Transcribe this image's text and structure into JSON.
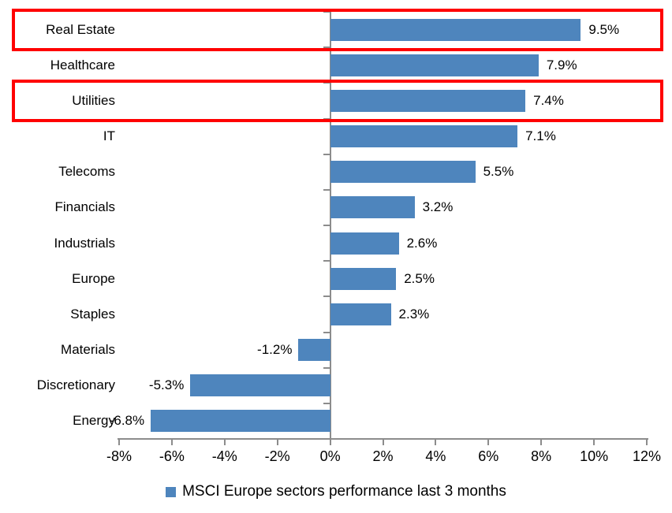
{
  "chart_data": {
    "type": "bar",
    "orientation": "horizontal",
    "title": "",
    "categories": [
      "Real Estate",
      "Healthcare",
      "Utilities",
      "IT",
      "Telecoms",
      "Financials",
      "Industrials",
      "Europe",
      "Staples",
      "Materials",
      "Discretionary",
      "Energy"
    ],
    "values": [
      9.5,
      7.9,
      7.4,
      7.1,
      5.5,
      3.2,
      2.6,
      2.5,
      2.3,
      -1.2,
      -5.3,
      -6.8
    ],
    "value_labels": [
      "9.5%",
      "7.9%",
      "7.4%",
      "7.1%",
      "5.5%",
      "3.2%",
      "2.6%",
      "2.5%",
      "2.3%",
      "-1.2%",
      "-5.3%",
      "-6.8%"
    ],
    "xlim": [
      -8,
      12
    ],
    "x_tick_step": 2,
    "x_tick_labels": [
      "-8%",
      "-6%",
      "-4%",
      "-2%",
      "0%",
      "2%",
      "4%",
      "6%",
      "8%",
      "10%",
      "12%"
    ],
    "grid": false,
    "legend": {
      "label": "MSCI Europe sectors performance last 3 months",
      "position": "bottom"
    },
    "highlighted_categories": [
      "Real Estate",
      "Utilities"
    ],
    "colors": {
      "bar": "#4E85BD",
      "highlight_box": "#FF0000",
      "axis": "#8C8C8C",
      "text": "#000000",
      "background": "#FFFFFF"
    }
  }
}
